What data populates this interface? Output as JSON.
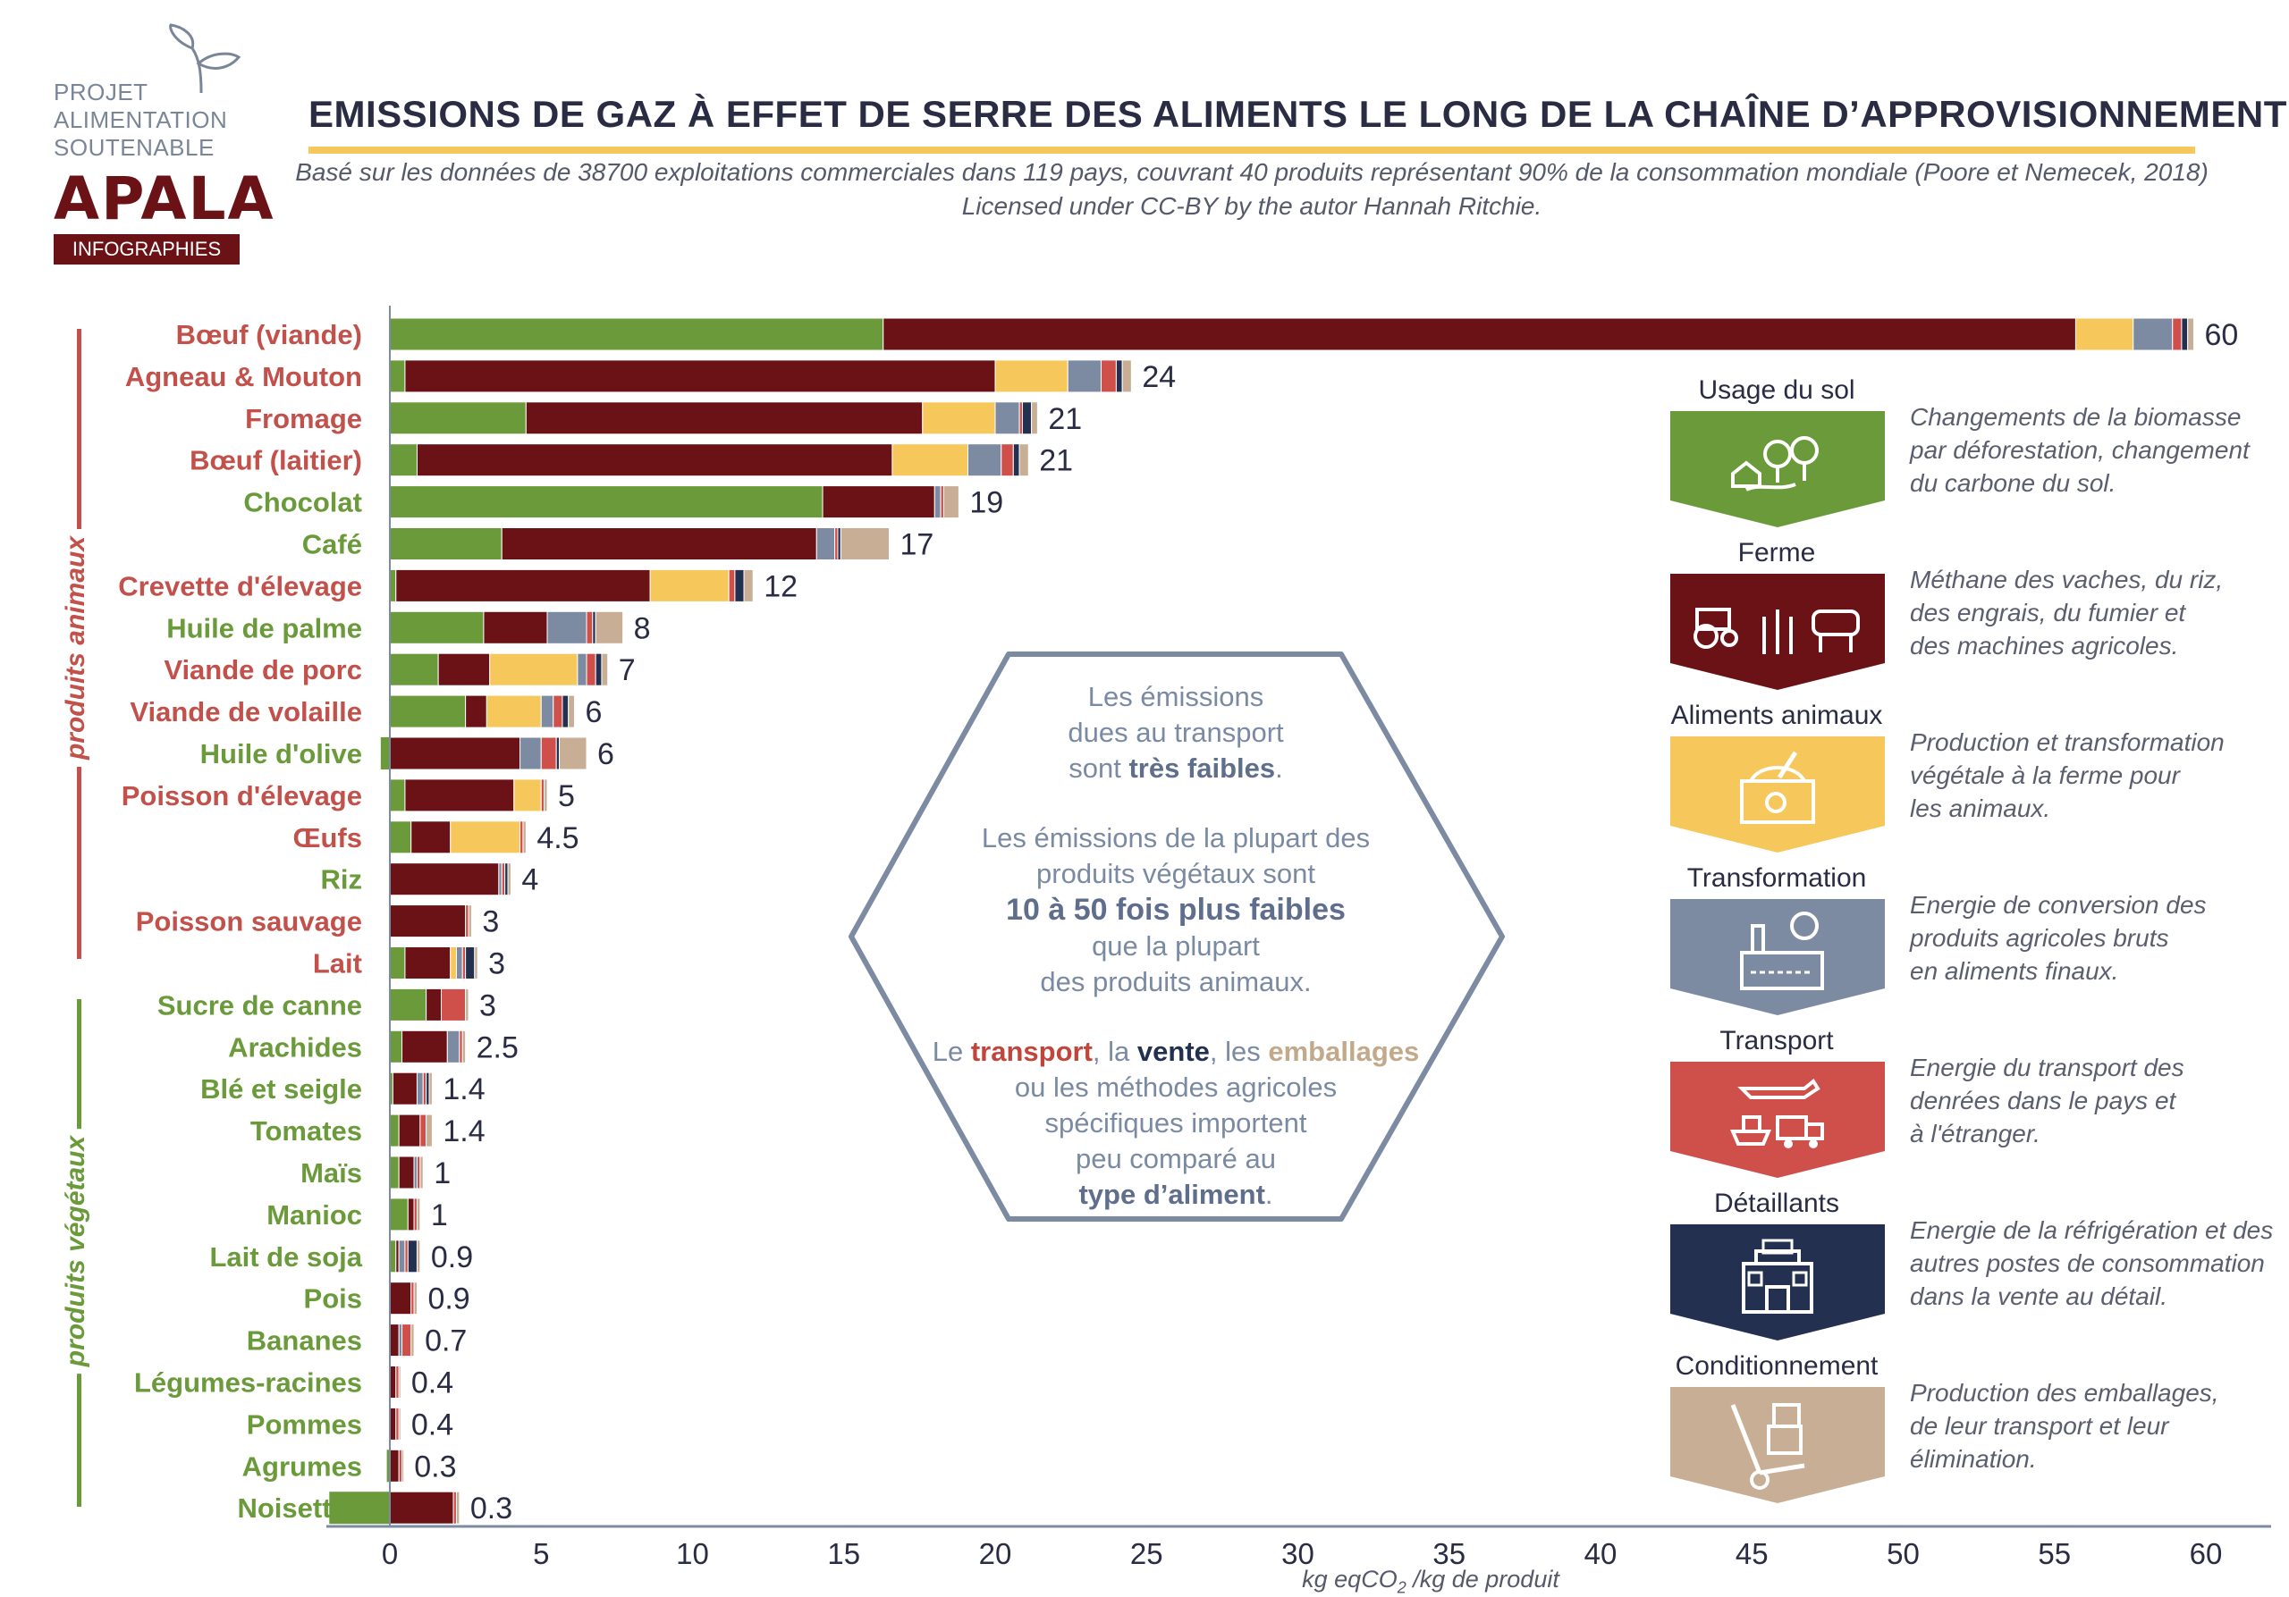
{
  "logo": {
    "project_lines": [
      "PROJET",
      "ALIMENTATION",
      "SOUTENABLE"
    ],
    "brand": "APALA",
    "badge": "INFOGRAPHIES"
  },
  "header": {
    "title": "EMISSIONS DE GAZ À EFFET DE SERRE DES ALIMENTS LE LONG DE LA CHAÎNE D’APPROVISIONNEMENT",
    "subtitle_line1": "Basé sur les données de 38700 exploitations commerciales dans 119 pays, couvrant 40 produits représentant 90% de la consommation mondiale (Poore et Nemecek, 2018)",
    "subtitle_line2": "Licensed under CC-BY by the autor Hannah Ritchie."
  },
  "side_labels": {
    "animal": "produits animaux",
    "vegetal": "produits végétaux"
  },
  "colors": {
    "land_use": "#6a9a3a",
    "farm": "#6b1216",
    "animal_feed": "#f6c85c",
    "processing": "#7c8ba2",
    "transport": "#cf4f4a",
    "retail": "#23304f",
    "packaging": "#c8ae94",
    "animal_label": "#c2514b",
    "vegetal_label": "#6a9a3a",
    "axis": "#7c8ba2"
  },
  "chart_data": {
    "type": "bar",
    "orientation": "horizontal",
    "stacked": true,
    "xlabel": "kg eqCO2 /kg de produit",
    "xlim": [
      -2,
      61
    ],
    "xticks": [
      0,
      5,
      10,
      15,
      20,
      25,
      30,
      35,
      40,
      45,
      50,
      55,
      60
    ],
    "series": [
      {
        "name": "Usage du sol"
      },
      {
        "name": "Ferme"
      },
      {
        "name": "Aliments animaux"
      },
      {
        "name": "Transformation"
      },
      {
        "name": "Transport"
      },
      {
        "name": "Détaillants"
      },
      {
        "name": "Conditionnement"
      }
    ],
    "categories": [
      {
        "label": "Bœuf (viande)",
        "group": "animal",
        "total_label": "60",
        "values": [
          16.3,
          39.4,
          1.9,
          1.3,
          0.3,
          0.2,
          0.2
        ]
      },
      {
        "label": "Agneau & Mouton",
        "group": "animal",
        "total_label": "24",
        "values": [
          0.5,
          19.5,
          2.4,
          1.1,
          0.5,
          0.2,
          0.3
        ]
      },
      {
        "label": "Fromage",
        "group": "animal",
        "total_label": "21",
        "values": [
          4.5,
          13.1,
          2.4,
          0.8,
          0.1,
          0.3,
          0.2
        ]
      },
      {
        "label": "Bœuf (laitier)",
        "group": "animal",
        "total_label": "21",
        "values": [
          0.9,
          15.7,
          2.5,
          1.1,
          0.4,
          0.2,
          0.3
        ]
      },
      {
        "label": "Chocolat",
        "group": "vegetal",
        "total_label": "19",
        "values": [
          14.3,
          3.7,
          0,
          0.2,
          0.1,
          0,
          0.5
        ]
      },
      {
        "label": "Café",
        "group": "vegetal",
        "total_label": "17",
        "values": [
          3.7,
          10.4,
          0,
          0.6,
          0.1,
          0.1,
          1.6
        ]
      },
      {
        "label": "Crevette d'élevage",
        "group": "animal",
        "total_label": "12",
        "values": [
          0.2,
          8.4,
          2.6,
          0,
          0.2,
          0.3,
          0.3
        ]
      },
      {
        "label": "Huile de palme",
        "group": "vegetal",
        "total_label": "8",
        "values": [
          3.1,
          2.1,
          0,
          1.3,
          0.2,
          0.1,
          0.9
        ]
      },
      {
        "label": "Viande de porc",
        "group": "animal",
        "total_label": "7",
        "values": [
          1.6,
          1.7,
          2.9,
          0.3,
          0.3,
          0.2,
          0.2
        ]
      },
      {
        "label": "Viande de volaille",
        "group": "animal",
        "total_label": "6",
        "values": [
          2.5,
          0.7,
          1.8,
          0.4,
          0.3,
          0.2,
          0.2
        ]
      },
      {
        "label": "Huile d'olive",
        "group": "vegetal",
        "total_label": "6",
        "values": [
          -0.3,
          4.3,
          0,
          0.7,
          0.5,
          0.1,
          0.9
        ]
      },
      {
        "label": "Poisson d'élevage",
        "group": "animal",
        "total_label": "5",
        "values": [
          0.5,
          3.6,
          0.9,
          0,
          0.1,
          0,
          0.1
        ]
      },
      {
        "label": "Œufs",
        "group": "animal",
        "total_label": "4.5",
        "values": [
          0.7,
          1.3,
          2.3,
          0,
          0.1,
          0,
          0.1
        ]
      },
      {
        "label": "Riz",
        "group": "vegetal",
        "total_label": "4",
        "values": [
          0,
          3.6,
          0,
          0.1,
          0.1,
          0.1,
          0.1
        ]
      },
      {
        "label": "Poisson sauvage",
        "group": "animal",
        "total_label": "3",
        "values": [
          0,
          2.5,
          0,
          0,
          0.1,
          0,
          0.1
        ]
      },
      {
        "label": "Lait",
        "group": "animal",
        "total_label": "3",
        "values": [
          0.5,
          1.5,
          0.2,
          0.2,
          0.1,
          0.3,
          0.1
        ]
      },
      {
        "label": "Sucre de canne",
        "group": "vegetal",
        "total_label": "3",
        "values": [
          1.2,
          0.5,
          0,
          0,
          0.8,
          0,
          0.1
        ]
      },
      {
        "label": "Arachides",
        "group": "vegetal",
        "total_label": "2.5",
        "values": [
          0.4,
          1.5,
          0,
          0.4,
          0.1,
          0,
          0.1
        ]
      },
      {
        "label": "Blé et seigle",
        "group": "vegetal",
        "total_label": "1.4",
        "values": [
          0.1,
          0.8,
          0,
          0.2,
          0.1,
          0.1,
          0.1
        ]
      },
      {
        "label": "Tomates",
        "group": "vegetal",
        "total_label": "1.4",
        "values": [
          0.3,
          0.7,
          0,
          0,
          0.2,
          0,
          0.2
        ]
      },
      {
        "label": "Maïs",
        "group": "vegetal",
        "total_label": "1",
        "values": [
          0.3,
          0.5,
          0,
          0.1,
          0.1,
          0,
          0.1
        ]
      },
      {
        "label": "Manioc",
        "group": "vegetal",
        "total_label": "1",
        "values": [
          0.6,
          0.2,
          0,
          0,
          0.1,
          0,
          0.1
        ]
      },
      {
        "label": "Lait de soja",
        "group": "vegetal",
        "total_label": "0.9",
        "values": [
          0.2,
          0.1,
          0,
          0.2,
          0.1,
          0.3,
          0.1
        ]
      },
      {
        "label": "Pois",
        "group": "vegetal",
        "total_label": "0.9",
        "values": [
          0,
          0.7,
          0,
          0,
          0.1,
          0,
          0.1
        ]
      },
      {
        "label": "Bananes",
        "group": "vegetal",
        "total_label": "0.7",
        "values": [
          0,
          0.3,
          0,
          0.1,
          0.3,
          0,
          0.1
        ]
      },
      {
        "label": "Légumes-racines",
        "group": "vegetal",
        "total_label": "0.4",
        "values": [
          0,
          0.2,
          0,
          0,
          0.1,
          0,
          0.05
        ]
      },
      {
        "label": "Pommes",
        "group": "vegetal",
        "total_label": "0.4",
        "values": [
          0,
          0.2,
          0,
          0,
          0.1,
          0,
          0.05
        ]
      },
      {
        "label": "Agrumes",
        "group": "vegetal",
        "total_label": "0.3",
        "values": [
          -0.1,
          0.3,
          0,
          0,
          0.1,
          0,
          0.05
        ]
      },
      {
        "label": "Noisettes",
        "group": "vegetal",
        "total_label": "0.3",
        "values": [
          -2.0,
          2.1,
          0,
          0,
          0.1,
          0,
          0.1
        ]
      }
    ]
  },
  "hexagon": {
    "p1_a": "Les émissions",
    "p1_b": "dues au transport",
    "p1_c": "sont",
    "p1_bold": "très faibles",
    "p1_end": ".",
    "p2_a": "Les émissions de la plupart des",
    "p2_b": "produits végétaux sont",
    "p2_bold": "10 à 50 fois plus faibles",
    "p2_c": "que la plupart",
    "p2_d": "des produits animaux.",
    "p3_le": "Le",
    "p3_transport": "transport",
    "p3_comma1": ", la",
    "p3_vente": "vente",
    "p3_comma2": ", les",
    "p3_emballages": "emballages",
    "p3_b": "ou les méthodes agricoles",
    "p3_c": "spécifiques importent",
    "p3_d": "peu comparé au",
    "p3_bold": "type d’aliment",
    "p3_end": "."
  },
  "legend": [
    {
      "title": "Usage du sol",
      "icon": "land-use-icon",
      "color": "#6a9a3a",
      "desc": [
        "Changements de la biomasse",
        "par  déforestation, changement",
        "du carbone du sol."
      ]
    },
    {
      "title": "Ferme",
      "icon": "farm-icon",
      "color": "#6b1216",
      "desc": [
        "Méthane des vaches, du riz,",
        "des engrais, du fumier et",
        "des machines agricoles."
      ]
    },
    {
      "title": "Aliments animaux",
      "icon": "animal-feed-icon",
      "color": "#f6c85c",
      "desc": [
        "Production et transformation",
        "végétale à la ferme pour",
        "les animaux."
      ]
    },
    {
      "title": "Transformation",
      "icon": "factory-icon",
      "color": "#7c8ba2",
      "desc": [
        "Energie de conversion des",
        "produits agricoles bruts",
        "en aliments finaux."
      ]
    },
    {
      "title": "Transport",
      "icon": "transport-icon",
      "color": "#cf4f4a",
      "desc": [
        "Energie du transport des",
        "denrées dans le pays et",
        "à l'étranger."
      ]
    },
    {
      "title": "Détaillants",
      "icon": "store-icon",
      "color": "#23304f",
      "desc": [
        "Energie de la réfrigération et des",
        "autres postes de consommation",
        "dans la vente au détail."
      ]
    },
    {
      "title": "Conditionnement",
      "icon": "hand-truck-icon",
      "color": "#c8ae94",
      "desc": [
        "Production des emballages,",
        "de leur transport et leur",
        "élimination."
      ]
    }
  ]
}
